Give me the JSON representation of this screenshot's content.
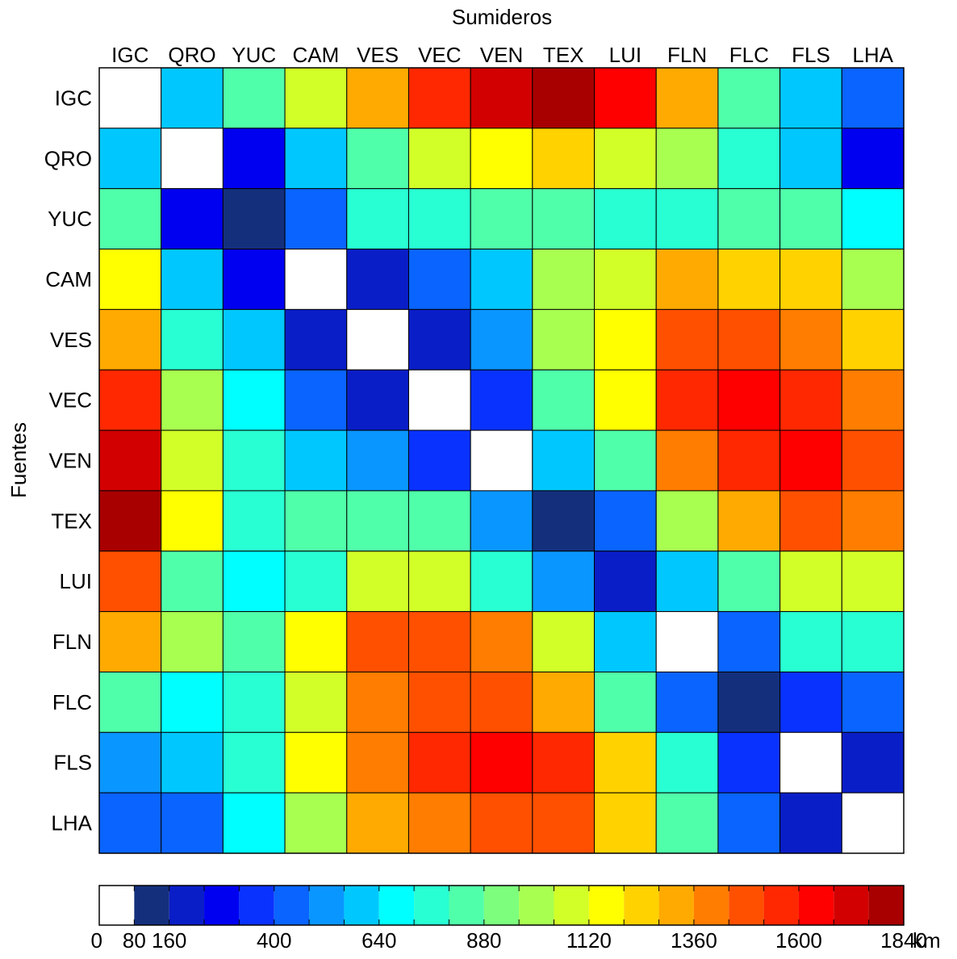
{
  "chart_data": {
    "type": "heatmap",
    "xlabel": "Sumideros",
    "ylabel": "Fuentes",
    "columns": [
      "IGC",
      "QRO",
      "YUC",
      "CAM",
      "VES",
      "VEC",
      "VEN",
      "TEX",
      "LUI",
      "FLN",
      "FLC",
      "FLS",
      "LHA"
    ],
    "rows": [
      "IGC",
      "QRO",
      "YUC",
      "CAM",
      "VES",
      "VEC",
      "VEN",
      "TEX",
      "LUI",
      "FLN",
      "FLC",
      "FLS",
      "LHA"
    ],
    "values": [
      [
        0,
        620,
        860,
        1060,
        1300,
        1560,
        1720,
        1800,
        1640,
        1300,
        860,
        620,
        440
      ],
      [
        620,
        0,
        300,
        620,
        860,
        1060,
        1140,
        1240,
        1060,
        960,
        740,
        620,
        300
      ],
      [
        860,
        300,
        100,
        440,
        740,
        780,
        800,
        840,
        740,
        780,
        800,
        800,
        680
      ],
      [
        1140,
        620,
        300,
        0,
        220,
        440,
        620,
        960,
        1060,
        1300,
        1240,
        1200,
        960
      ],
      [
        1300,
        740,
        620,
        220,
        0,
        180,
        540,
        960,
        1140,
        1480,
        1480,
        1400,
        1200
      ],
      [
        1560,
        960,
        680,
        440,
        180,
        0,
        340,
        860,
        1140,
        1560,
        1640,
        1560,
        1400
      ],
      [
        1720,
        1060,
        740,
        620,
        540,
        340,
        0,
        620,
        860,
        1400,
        1560,
        1640,
        1480
      ],
      [
        1800,
        1140,
        780,
        860,
        860,
        860,
        540,
        100,
        440,
        960,
        1300,
        1480,
        1400
      ],
      [
        1480,
        860,
        680,
        780,
        1060,
        1060,
        780,
        540,
        180,
        620,
        860,
        1060,
        1060
      ],
      [
        1300,
        960,
        860,
        1140,
        1480,
        1480,
        1400,
        1060,
        620,
        0,
        440,
        740,
        780
      ],
      [
        860,
        680,
        740,
        1060,
        1400,
        1480,
        1480,
        1300,
        860,
        440,
        100,
        340,
        440
      ],
      [
        540,
        620,
        780,
        1140,
        1400,
        1560,
        1640,
        1560,
        1240,
        780,
        340,
        0,
        180
      ],
      [
        440,
        440,
        680,
        960,
        1300,
        1400,
        1480,
        1480,
        1240,
        860,
        440,
        180,
        0
      ]
    ],
    "colorbar": {
      "unit": "km",
      "range": [
        0,
        1840
      ],
      "boundaries": [
        0,
        80,
        160,
        240,
        320,
        400,
        480,
        560,
        640,
        720,
        800,
        880,
        960,
        1040,
        1120,
        1200,
        1280,
        1360,
        1440,
        1520,
        1600,
        1680,
        1760,
        1840
      ],
      "tick_values": [
        0,
        80,
        160,
        400,
        640,
        880,
        1120,
        1360,
        1600,
        1840
      ],
      "tick_labels": [
        "0",
        "80",
        "160",
        "400",
        "640",
        "880",
        "1120",
        "1360",
        "1600",
        "1840"
      ],
      "colors": [
        "#ffffff",
        "#14307d",
        "#0a1ec8",
        "#0000f0",
        "#0a32ff",
        "#0a64ff",
        "#0a96ff",
        "#00c8ff",
        "#00ffff",
        "#28ffd2",
        "#50ffaa",
        "#7dff7d",
        "#a8ff50",
        "#d2ff28",
        "#ffff00",
        "#ffd200",
        "#ffaa00",
        "#ff7d00",
        "#ff5000",
        "#ff2800",
        "#ff0000",
        "#d20000",
        "#a80000"
      ]
    },
    "grid": true,
    "legend": "colorbar-bottom"
  }
}
